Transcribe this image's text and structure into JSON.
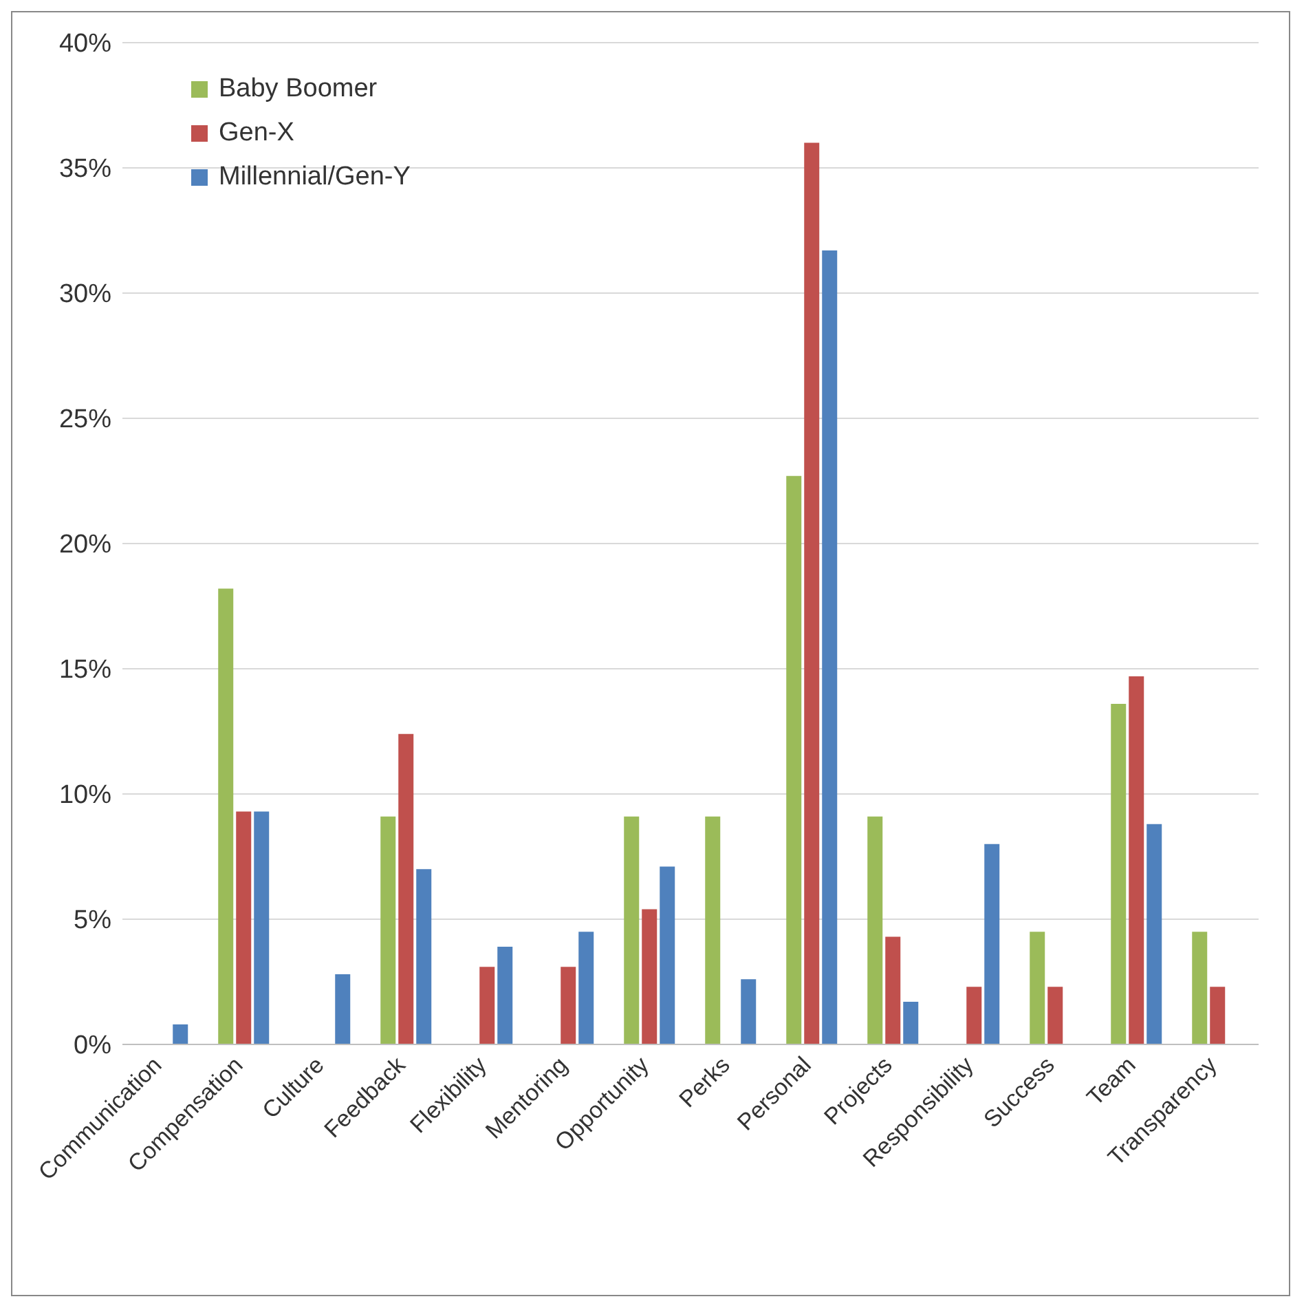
{
  "chart_data": {
    "type": "bar",
    "categories": [
      "Communication",
      "Compensation",
      "Culture",
      "Feedback",
      "Flexibility",
      "Mentoring",
      "Opportunity",
      "Perks",
      "Personal",
      "Projects",
      "Responsibility",
      "Success",
      "Team",
      "Transparency"
    ],
    "series": [
      {
        "name": "Baby Boomer",
        "color": "#9bbb59",
        "values": [
          0,
          18.2,
          0,
          9.1,
          0,
          0,
          9.1,
          9.1,
          22.7,
          9.1,
          0,
          4.5,
          13.6,
          4.5
        ]
      },
      {
        "name": "Gen-X",
        "color": "#c0504d",
        "values": [
          0,
          9.3,
          0,
          12.4,
          3.1,
          3.1,
          5.4,
          0,
          36.0,
          4.3,
          2.3,
          2.3,
          14.7,
          2.3
        ]
      },
      {
        "name": "Millennial/Gen-Y",
        "color": "#4f81bd",
        "values": [
          0.8,
          9.3,
          2.8,
          7.0,
          3.9,
          4.5,
          7.1,
          2.6,
          31.7,
          1.7,
          8.0,
          0,
          8.8,
          0
        ]
      }
    ],
    "ylim": [
      0,
      40
    ],
    "yticks": [
      {
        "value": 0,
        "label": "0%"
      },
      {
        "value": 5,
        "label": "5%"
      },
      {
        "value": 10,
        "label": "10%"
      },
      {
        "value": 15,
        "label": "15%"
      },
      {
        "value": 20,
        "label": "20%"
      },
      {
        "value": 25,
        "label": "25%"
      },
      {
        "value": 30,
        "label": "30%"
      },
      {
        "value": 35,
        "label": "35%"
      },
      {
        "value": 40,
        "label": "40%"
      }
    ],
    "grid": "y",
    "legend": "top left"
  }
}
